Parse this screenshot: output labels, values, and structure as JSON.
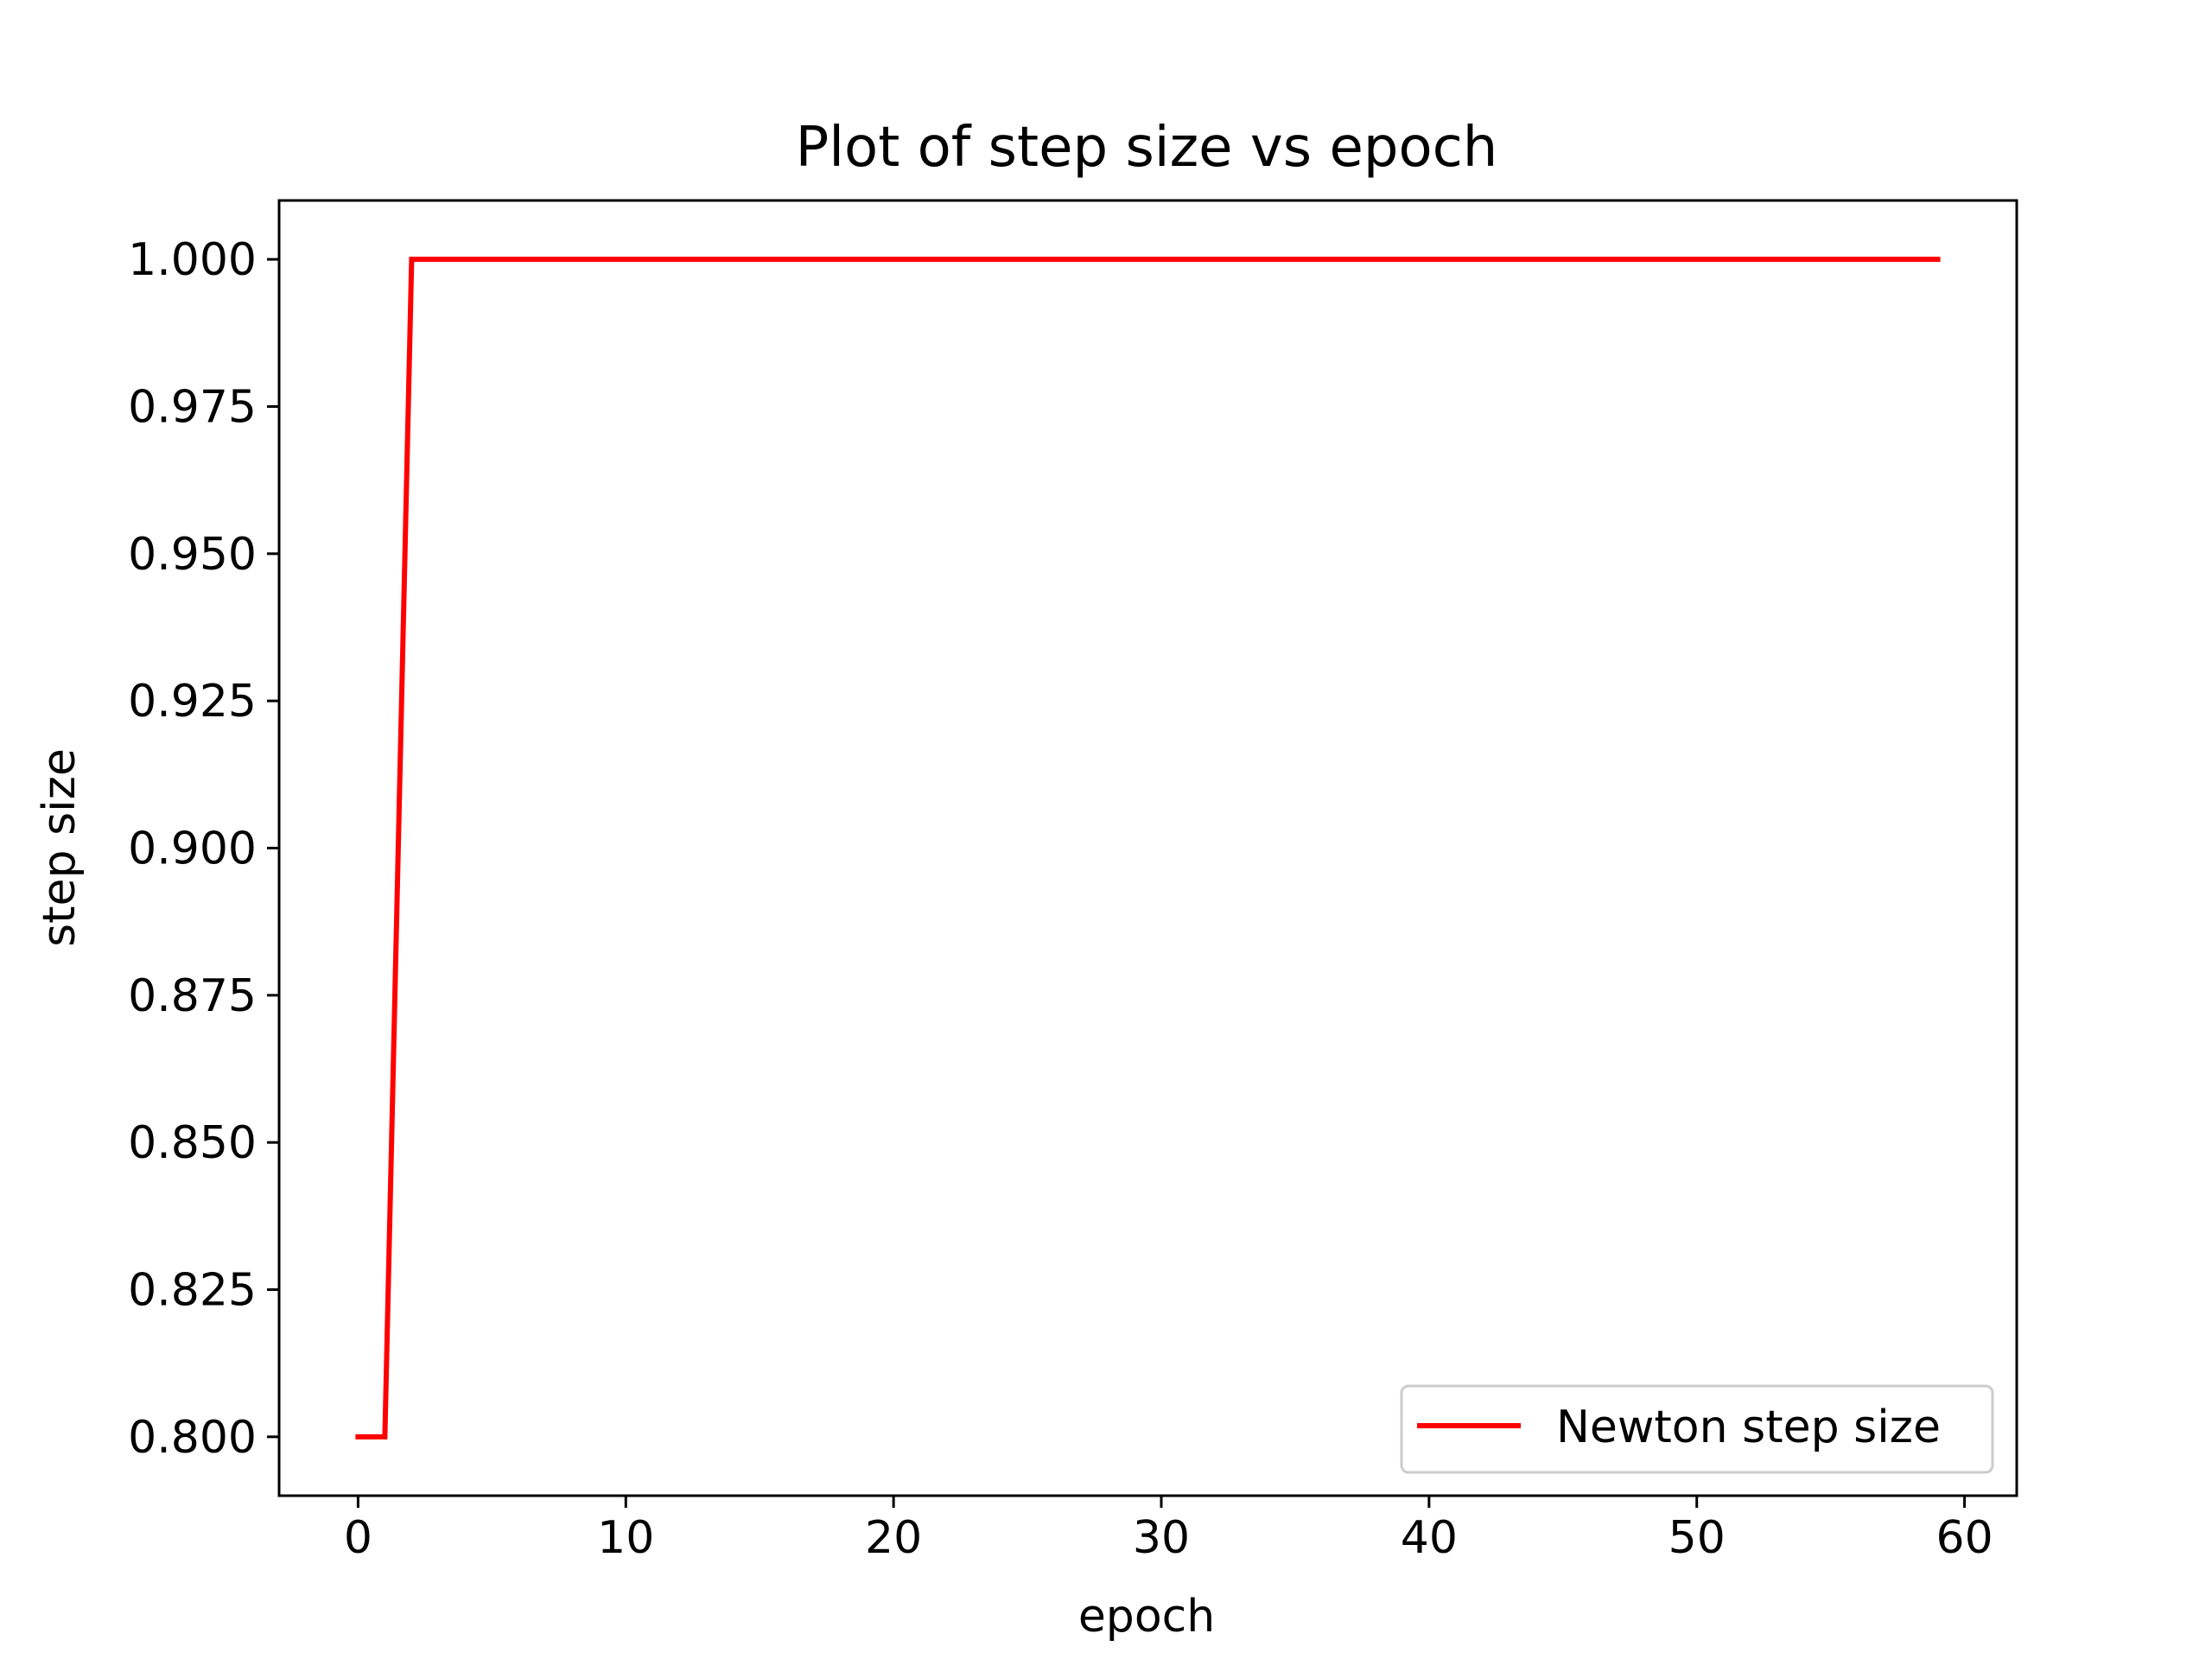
{
  "chart_data": {
    "type": "line",
    "title": "Plot of step size vs epoch",
    "xlabel": "epoch",
    "ylabel": "step size",
    "xlim": [
      -2.95,
      61.95
    ],
    "ylim": [
      0.79,
      1.01
    ],
    "xticks": [
      0,
      10,
      20,
      30,
      40,
      50,
      60
    ],
    "xtick_labels": [
      "0",
      "10",
      "20",
      "30",
      "40",
      "50",
      "60"
    ],
    "yticks": [
      0.8,
      0.825,
      0.85,
      0.875,
      0.9,
      0.925,
      0.95,
      0.975,
      1.0
    ],
    "ytick_labels": [
      "0.800",
      "0.825",
      "0.850",
      "0.875",
      "0.900",
      "0.925",
      "0.950",
      "0.975",
      "1.000"
    ],
    "grid": false,
    "legend_position": "lower right",
    "series": [
      {
        "name": "Newton step size",
        "color": "#ff0000",
        "x": [
          0,
          1,
          2,
          59
        ],
        "y": [
          0.8,
          0.8,
          1.0,
          1.0
        ]
      }
    ]
  }
}
